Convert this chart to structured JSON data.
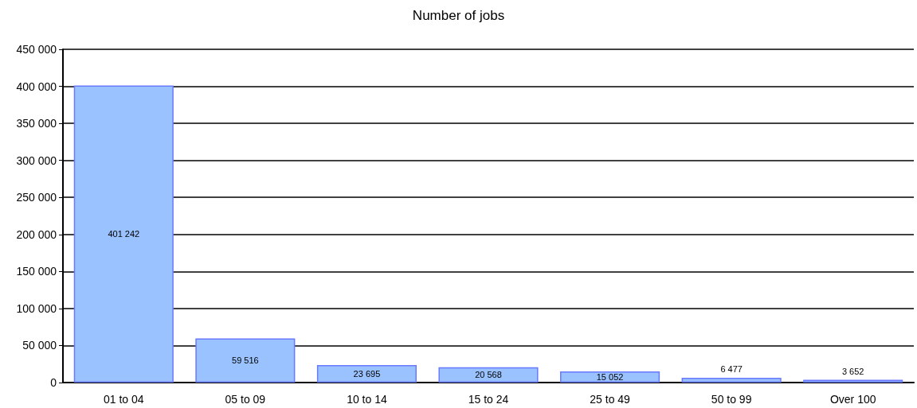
{
  "chart_data": {
    "type": "bar",
    "title": "Number of jobs",
    "categories": [
      "01 to 04",
      "05 to 09",
      "10 to 14",
      "15 to 24",
      "25 to 49",
      "50 to 99",
      "Over 100"
    ],
    "values": [
      401242,
      59516,
      23695,
      20568,
      15052,
      6477,
      3652
    ],
    "value_labels": [
      "401 242",
      "59 516",
      "23 695",
      "20 568",
      "15 052",
      "6 477",
      "3 652"
    ],
    "color": "#99c2ff",
    "ylim": [
      0,
      450000
    ],
    "yticks": [
      {
        "value": 0,
        "label": "0"
      },
      {
        "value": 50000,
        "label": "50 000"
      },
      {
        "value": 100000,
        "label": "100 000"
      },
      {
        "value": 150000,
        "label": "150 000"
      },
      {
        "value": 200000,
        "label": "200 000"
      },
      {
        "value": 250000,
        "label": "250 000"
      },
      {
        "value": 300000,
        "label": "300 000"
      },
      {
        "value": 350000,
        "label": "350 000"
      },
      {
        "value": 400000,
        "label": "400 000"
      },
      {
        "value": 450000,
        "label": "450 000"
      }
    ],
    "grid": "y"
  }
}
